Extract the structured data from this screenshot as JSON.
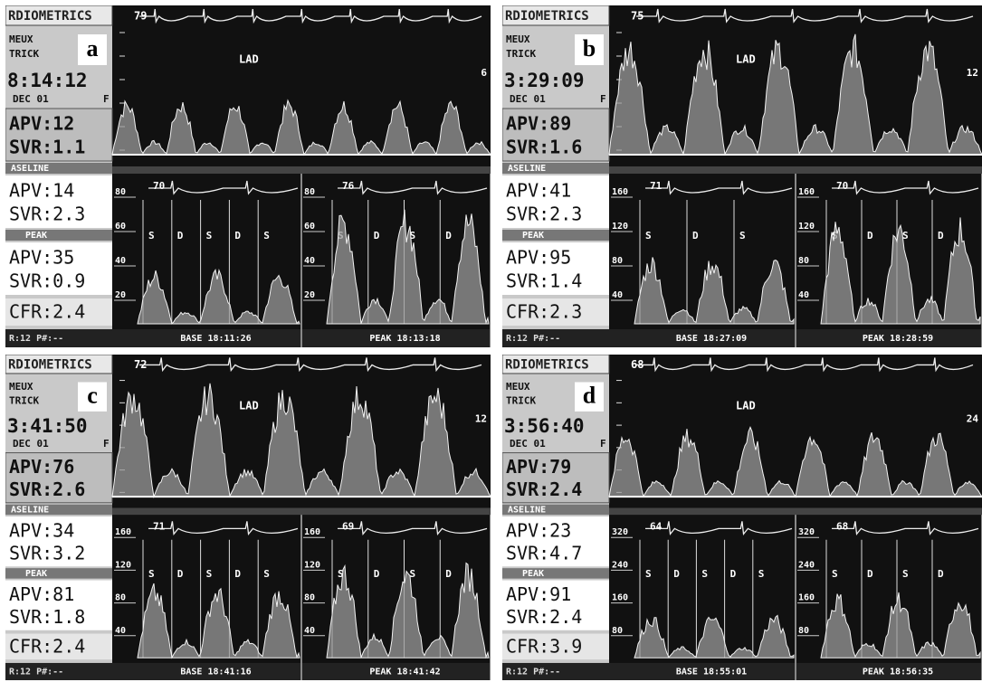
{
  "panels": [
    {
      "letter": "a",
      "header": "RDIOMETRICS",
      "name1": "MEUX",
      "name2": "TRICK",
      "time": "8:14:12",
      "date": "DEC 01",
      "flag": "F",
      "top_hr": "79",
      "vessel": "LAD",
      "right_label": "6",
      "rest_apv": "APV:12",
      "rest_svr": "SVR:1.1",
      "baseline": "ASELINE",
      "base_apv": "APV:14",
      "base_svr": "SVR:2.3",
      "peak": "PEAK",
      "peak_apv": "APV:35",
      "peak_svr": "SVR:0.9",
      "cfr": "CFR:2.4",
      "footer": "R:12  P#:--",
      "base_hr": "70",
      "peak_hr": "76",
      "base_time": "BASE 18:11:26",
      "peak_time": "PEAK 18:13:18",
      "base_scale": [
        "80",
        "60",
        "40",
        "20"
      ],
      "peak_scale": [
        "80",
        "60",
        "40",
        "20"
      ],
      "base_sd": [
        "S",
        "D",
        "S",
        "D",
        "S"
      ],
      "peak_sd": [
        "S",
        "D",
        "S",
        "D"
      ]
    },
    {
      "letter": "b",
      "header": "RDIOMETRICS",
      "name1": "MEUX",
      "name2": "TRICK",
      "time": "3:29:09",
      "date": "DEC 01",
      "flag": "F",
      "top_hr": "75",
      "vessel": "LAD",
      "right_label": "12",
      "rest_apv": "APV:89",
      "rest_svr": "SVR:1.6",
      "baseline": "ASELINE",
      "base_apv": "APV:41",
      "base_svr": "SVR:2.3",
      "peak": "PEAK",
      "peak_apv": "APV:95",
      "peak_svr": "SVR:1.4",
      "cfr": "CFR:2.3",
      "footer": "R:12  P#:--",
      "base_hr": "71",
      "peak_hr": "70",
      "base_time": "BASE 18:27:09",
      "peak_time": "PEAK 18:28:59",
      "base_scale": [
        "160",
        "120",
        "80",
        "40"
      ],
      "peak_scale": [
        "160",
        "120",
        "80",
        "40"
      ],
      "base_sd": [
        "S",
        "D",
        "S"
      ],
      "peak_sd": [
        "S",
        "D",
        "S",
        "D"
      ]
    },
    {
      "letter": "c",
      "header": "RDIOMETRICS",
      "name1": "MEUX",
      "name2": "TRICK",
      "time": "3:41:50",
      "date": "DEC 01",
      "flag": "F",
      "top_hr": "72",
      "vessel": "LAD",
      "right_label": "12",
      "rest_apv": "APV:76",
      "rest_svr": "SVR:2.6",
      "baseline": "ASELINE",
      "base_apv": "APV:34",
      "base_svr": "SVR:3.2",
      "peak": "PEAK",
      "peak_apv": "APV:81",
      "peak_svr": "SVR:1.8",
      "cfr": "CFR:2.4",
      "footer": "R:12  P#:--",
      "base_hr": "71",
      "peak_hr": "69",
      "base_time": "BASE 18:41:16",
      "peak_time": "PEAK 18:41:42",
      "base_scale": [
        "160",
        "120",
        "80",
        "40"
      ],
      "peak_scale": [
        "160",
        "120",
        "80",
        "40"
      ],
      "base_sd": [
        "S",
        "D",
        "S",
        "D",
        "S"
      ],
      "peak_sd": [
        "S",
        "D",
        "S",
        "D"
      ]
    },
    {
      "letter": "d",
      "header": "RDIOMETRICS",
      "name1": "MEUX",
      "name2": "TRICK",
      "time": "3:56:40",
      "date": "DEC 01",
      "flag": "F",
      "top_hr": "68",
      "vessel": "LAD",
      "right_label": "24",
      "rest_apv": "APV:79",
      "rest_svr": "SVR:2.4",
      "baseline": "ASELINE",
      "base_apv": "APV:23",
      "base_svr": "SVR:4.7",
      "peak": "PEAK",
      "peak_apv": "APV:91",
      "peak_svr": "SVR:2.4",
      "cfr": "CFR:3.9",
      "footer": "R:12  P#:--",
      "base_hr": "64",
      "peak_hr": "68",
      "base_time": "BASE 18:55:01",
      "peak_time": "PEAK 18:56:35",
      "base_scale": [
        "320",
        "240",
        "160",
        "80"
      ],
      "peak_scale": [
        "320",
        "240",
        "160",
        "80"
      ],
      "base_sd": [
        "S",
        "D",
        "S",
        "D",
        "S"
      ],
      "peak_sd": [
        "S",
        "D",
        "S",
        "D"
      ]
    }
  ]
}
